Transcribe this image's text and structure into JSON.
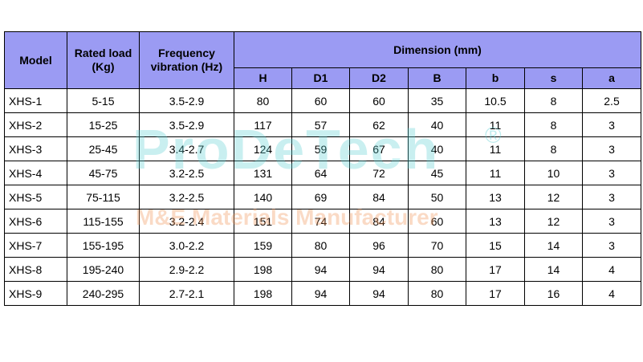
{
  "header": {
    "model": "Model",
    "rated_load": "Rated load (Kg)",
    "frequency": "Frequency vibration (Hz)",
    "dimension": "Dimension (mm)",
    "dims": [
      "H",
      "D1",
      "D2",
      "B",
      "b",
      "s",
      "a"
    ]
  },
  "rows": [
    [
      "XHS-1",
      "5-15",
      "3.5-2.9",
      "80",
      "60",
      "60",
      "35",
      "10.5",
      "8",
      "2.5"
    ],
    [
      "XHS-2",
      "15-25",
      "3.5-2.9",
      "117",
      "57",
      "62",
      "40",
      "11",
      "8",
      "3"
    ],
    [
      "XHS-3",
      "25-45",
      "3.4-2.7",
      "124",
      "59",
      "67",
      "40",
      "11",
      "8",
      "3"
    ],
    [
      "XHS-4",
      "45-75",
      "3.2-2.5",
      "131",
      "64",
      "72",
      "45",
      "11",
      "10",
      "3"
    ],
    [
      "XHS-5",
      "75-115",
      "3.2-2.5",
      "140",
      "69",
      "84",
      "50",
      "13",
      "12",
      "3"
    ],
    [
      "XHS-6",
      "115-155",
      "3.2-2.4",
      "151",
      "74",
      "84",
      "60",
      "13",
      "12",
      "3"
    ],
    [
      "XHS-7",
      "155-195",
      "3.0-2.2",
      "159",
      "80",
      "96",
      "70",
      "15",
      "14",
      "3"
    ],
    [
      "XHS-8",
      "195-240",
      "2.9-2.2",
      "198",
      "94",
      "94",
      "80",
      "17",
      "14",
      "4"
    ],
    [
      "XHS-9",
      "240-295",
      "2.7-2.1",
      "198",
      "94",
      "94",
      "80",
      "17",
      "16",
      "4"
    ]
  ],
  "watermark": {
    "brand": "ProDeTech",
    "registered": "®",
    "tagline": "M&E Materials Manufacturer"
  },
  "colors": {
    "header_bg": "#9b9bf3",
    "border": "#000000"
  }
}
